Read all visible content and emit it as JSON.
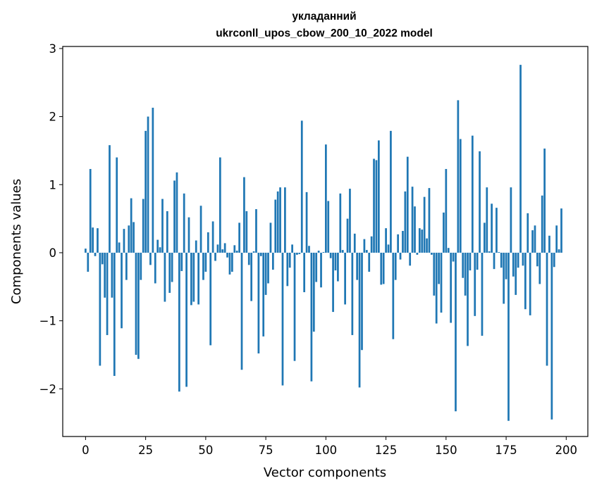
{
  "chart_data": {
    "type": "bar",
    "title": [
      "укладанний",
      "ukrconll_upos_cbow_200_10_2022 model"
    ],
    "xlabel": "Vector components",
    "ylabel": "Components values",
    "xlim": [
      -9.5,
      209
    ],
    "ylim": [
      -2.7,
      3.03
    ],
    "xticks": [
      0,
      25,
      50,
      75,
      100,
      125,
      150,
      175,
      200
    ],
    "xtick_labels": [
      "0",
      "25",
      "50",
      "75",
      "100",
      "125",
      "150",
      "175",
      "200"
    ],
    "yticks": [
      -2,
      -1,
      0,
      1,
      2,
      3
    ],
    "ytick_labels": [
      "−2",
      "−1",
      "0",
      "1",
      "2",
      "3"
    ],
    "bar_color": "#1f77b4",
    "bar_width": 0.8,
    "x_start": 0,
    "values": [
      0.06,
      -0.28,
      1.23,
      0.37,
      -0.05,
      0.36,
      -1.66,
      -0.17,
      -0.66,
      -1.21,
      1.58,
      -0.66,
      -1.81,
      1.4,
      0.15,
      -1.11,
      0.35,
      -0.4,
      0.4,
      0.8,
      0.45,
      -1.5,
      -1.56,
      -0.4,
      0.79,
      1.79,
      2.0,
      -0.18,
      2.13,
      -0.45,
      0.19,
      0.08,
      0.79,
      -0.72,
      0.61,
      -0.59,
      -0.43,
      1.06,
      1.18,
      -2.04,
      -0.27,
      0.87,
      -1.97,
      0.52,
      -0.77,
      -0.72,
      0.18,
      -0.76,
      0.69,
      -0.4,
      -0.28,
      0.3,
      -1.36,
      0.46,
      -0.12,
      0.12,
      1.4,
      0.05,
      0.14,
      -0.07,
      -0.32,
      -0.28,
      0.11,
      0.03,
      0.44,
      -1.72,
      1.11,
      0.61,
      -0.18,
      -0.71,
      0.02,
      0.64,
      -1.48,
      -0.05,
      -1.23,
      -0.62,
      -0.45,
      0.44,
      -0.25,
      0.78,
      0.9,
      0.96,
      -1.95,
      0.96,
      -0.49,
      -0.22,
      0.12,
      -1.59,
      -0.03,
      -0.02,
      1.94,
      -0.58,
      0.89,
      0.1,
      -1.89,
      -1.16,
      -0.43,
      0.03,
      -0.51,
      0.01,
      1.59,
      0.76,
      -0.08,
      -0.87,
      -0.26,
      -0.42,
      0.87,
      0.04,
      -0.76,
      0.5,
      0.94,
      -1.21,
      0.28,
      -0.4,
      -1.98,
      -1.43,
      0.2,
      0.04,
      -0.28,
      0.24,
      1.38,
      1.36,
      1.65,
      -0.47,
      -0.46,
      0.36,
      0.12,
      1.79,
      -1.27,
      -0.4,
      0.27,
      -0.1,
      0.32,
      0.9,
      1.41,
      -0.19,
      0.97,
      0.68,
      -0.03,
      0.36,
      0.34,
      0.82,
      0.21,
      0.95,
      -0.03,
      -0.63,
      -1.04,
      -0.46,
      -0.88,
      0.59,
      1.23,
      0.07,
      -1.03,
      -0.13,
      -2.33,
      2.24,
      1.67,
      -0.37,
      -0.63,
      -1.37,
      -0.26,
      1.72,
      -0.93,
      -0.25,
      1.49,
      -1.22,
      0.44,
      0.96,
      0.02,
      0.72,
      -0.24,
      0.66,
      0.01,
      -0.22,
      -0.75,
      -0.39,
      -2.47,
      0.96,
      -0.35,
      -0.62,
      -0.22,
      2.76,
      -0.19,
      -0.83,
      0.58,
      -0.92,
      0.33,
      0.4,
      -0.2,
      -0.46,
      0.84,
      1.53,
      -1.66,
      0.25,
      -2.45,
      -0.21,
      0.4,
      0.05,
      0.65,
      0.0
    ]
  }
}
